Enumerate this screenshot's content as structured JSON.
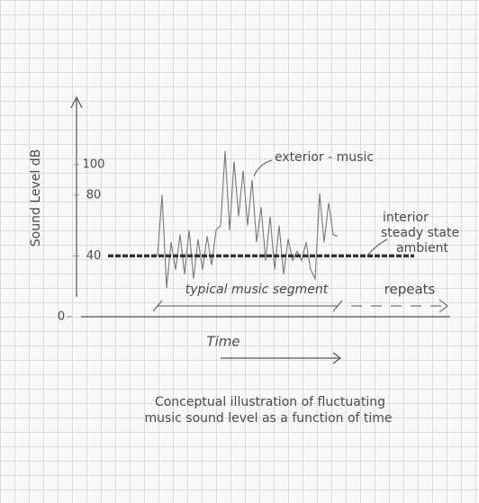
{
  "chart_data": {
    "type": "line",
    "ylabel": "Sound Level dB",
    "xlabel": "Time",
    "caption": [
      "Conceptual illustration of fluctuating",
      "music sound level as a function of time"
    ],
    "ylim": [
      0,
      143
    ],
    "yticks": [
      0,
      40,
      80,
      100
    ],
    "xlim": [
      0,
      82
    ],
    "series": [
      {
        "name": "exterior - music",
        "color": "#777777",
        "x": [
          17,
          18,
          19,
          20,
          21,
          22,
          23,
          24,
          25,
          26,
          27,
          28,
          29,
          30,
          31,
          32,
          33,
          34,
          35,
          36,
          37,
          38,
          39,
          40,
          41,
          42,
          43,
          44,
          45,
          46,
          47,
          48,
          49,
          50,
          51,
          52,
          53,
          54,
          55,
          56,
          57
        ],
        "values": [
          40,
          80,
          19,
          49,
          31,
          54,
          28,
          57,
          25,
          51,
          31,
          53,
          34,
          57,
          60,
          109,
          57,
          102,
          66,
          96,
          60,
          90,
          49,
          72,
          37,
          66,
          31,
          60,
          28,
          51,
          37,
          43,
          37,
          49,
          31,
          25,
          81,
          49,
          75,
          54,
          53
        ]
      },
      {
        "name": [
          "interior",
          "steady state",
          "ambient"
        ],
        "color": "#333333",
        "x": [
          6,
          74
        ],
        "values": [
          40,
          40
        ]
      }
    ],
    "annotations": {
      "segment": "typical music segment",
      "repeats": "repeats"
    }
  }
}
